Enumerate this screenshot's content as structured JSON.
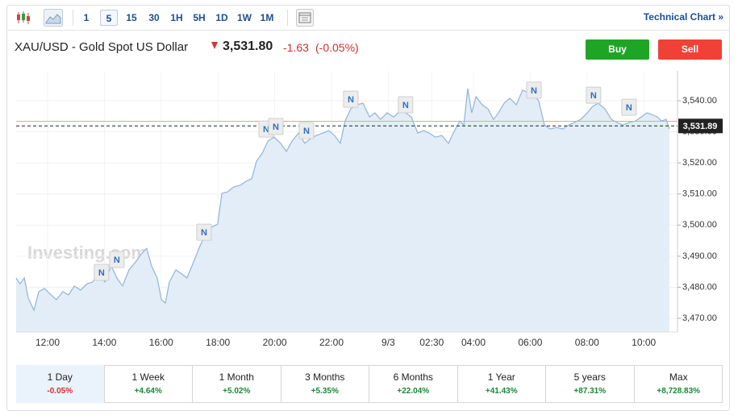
{
  "toolbar": {
    "intervals": [
      "1",
      "5",
      "15",
      "30",
      "1H",
      "5H",
      "1D",
      "1W",
      "1M"
    ],
    "selected": "5",
    "link": "Technical Chart »"
  },
  "header": {
    "title": "XAU/USD - Gold Spot US Dollar",
    "price": "3,531.80",
    "change": "-1.63",
    "change_percent": "(-0.05%)",
    "buy": "Buy",
    "sell": "Sell"
  },
  "chart_data": {
    "type": "line",
    "watermark": "Investing.com",
    "x": [
      -1.11,
      -0.97,
      -0.82,
      -0.68,
      -0.48,
      -0.31,
      -0.11,
      0.09,
      0.31,
      0.54,
      0.74,
      0.94,
      1.16,
      1.39,
      1.59,
      1.79,
      2.02,
      2.24,
      2.44,
      2.64,
      2.87,
      3.1,
      3.3,
      3.49,
      3.66,
      3.86,
      4.01,
      4.15,
      4.29,
      4.52,
      4.72,
      4.91,
      5.14,
      5.37,
      5.57,
      5.77,
      5.99,
      6.14,
      6.34,
      6.56,
      6.79,
      6.99,
      7.19,
      7.36,
      7.56,
      7.76,
      7.98,
      8.21,
      8.41,
      8.61,
      8.84,
      9.06,
      9.26,
      9.46,
      9.69,
      9.91,
      10.11,
      10.31,
      10.48,
      10.68,
      10.88,
      11.11,
      11.34,
      11.53,
      11.73,
      11.96,
      12.19,
      12.41,
      12.61,
      12.81,
      13.04,
      13.24,
      13.44,
      13.66,
      13.89,
      14.12,
      14.29,
      14.52,
      14.66,
      14.8,
      14.94,
      15.09,
      15.31,
      15.51,
      15.71,
      15.88,
      16.08,
      16.28,
      16.51,
      16.73,
      16.93,
      17.13,
      17.3,
      17.5,
      17.7,
      17.93,
      18.15,
      18.35,
      18.55,
      18.78,
      19.01,
      19.2,
      19.4,
      19.63,
      19.86,
      20.06,
      20.26,
      20.48,
      20.71,
      20.91,
      21.11,
      21.28,
      21.48,
      21.62,
      21.79,
      21.9
    ],
    "series": [
      {
        "name": "XAU/USD",
        "color": "#8fb4d8",
        "fill": "#e3edf7",
        "values": [
          3483.0,
          3481.1,
          3483.0,
          3476.5,
          3472.6,
          3478.6,
          3479.6,
          3477.8,
          3476.0,
          3478.6,
          3477.5,
          3480.4,
          3479.1,
          3481.1,
          3481.7,
          3484.3,
          3481.7,
          3486.9,
          3483.0,
          3480.4,
          3485.6,
          3488.1,
          3490.7,
          3492.5,
          3486.9,
          3483.0,
          3476.0,
          3474.9,
          3481.7,
          3485.6,
          3484.3,
          3483.0,
          3488.1,
          3493.3,
          3497.2,
          3499.3,
          3500.3,
          3510.2,
          3510.7,
          3512.3,
          3512.8,
          3514.1,
          3514.9,
          3520.6,
          3523.1,
          3527.0,
          3528.3,
          3526.3,
          3523.7,
          3527.0,
          3529.6,
          3526.3,
          3527.8,
          3528.8,
          3529.6,
          3530.4,
          3528.8,
          3526.3,
          3533.5,
          3537.4,
          3538.7,
          3539.2,
          3534.8,
          3536.1,
          3534.0,
          3536.1,
          3534.8,
          3536.6,
          3536.1,
          3534.8,
          3529.6,
          3530.4,
          3529.6,
          3528.3,
          3528.8,
          3526.3,
          3529.6,
          3533.5,
          3532.2,
          3543.9,
          3536.1,
          3541.3,
          3538.7,
          3537.4,
          3534.0,
          3536.1,
          3539.2,
          3540.8,
          3538.7,
          3543.4,
          3542.6,
          3541.8,
          3540.0,
          3532.2,
          3530.9,
          3531.4,
          3530.9,
          3532.2,
          3533.0,
          3534.0,
          3536.1,
          3538.2,
          3539.2,
          3537.4,
          3534.0,
          3533.0,
          3532.2,
          3533.0,
          3533.5,
          3534.8,
          3536.1,
          3535.6,
          3534.8,
          3533.5,
          3534.0,
          3530.9
        ]
      }
    ],
    "xlim": [
      -1.108,
      22.188
    ],
    "xticks": [
      {
        "value": 0,
        "label": "12:00"
      },
      {
        "value": 2,
        "label": "14:00"
      },
      {
        "value": 4,
        "label": "16:00"
      },
      {
        "value": 6,
        "label": "18:00"
      },
      {
        "value": 8,
        "label": "20:00"
      },
      {
        "value": 10,
        "label": "22:00"
      },
      {
        "value": 12,
        "label": "9/3"
      },
      {
        "value": 13.53,
        "label": "02:30"
      },
      {
        "value": 15,
        "label": "04:00"
      },
      {
        "value": 17,
        "label": "06:00"
      },
      {
        "value": 19,
        "label": "08:00"
      },
      {
        "value": 21,
        "label": "10:00"
      }
    ],
    "ylim": [
      3465.6,
      3549.6
    ],
    "yticks": [
      {
        "value": 3470,
        "label": "3,470.00"
      },
      {
        "value": 3480,
        "label": "3,480.00"
      },
      {
        "value": 3490,
        "label": "3,490.00"
      },
      {
        "value": 3500,
        "label": "3,500.00"
      },
      {
        "value": 3510,
        "label": "3,510.00"
      },
      {
        "value": 3520,
        "label": "3,520.00"
      },
      {
        "value": 3530,
        "label": "3,530.00"
      },
      {
        "value": 3540,
        "label": "3,540.00"
      }
    ],
    "grid": true,
    "last_price": {
      "value": 3531.89,
      "label": "3,531.89"
    },
    "reference_line": {
      "value": 3533.4,
      "color": "#f0a0a0"
    },
    "news_markers": [
      {
        "x": 2.44,
        "y": 3488.9,
        "label": "N"
      },
      {
        "x": 1.9,
        "y": 3484.8,
        "label": "N"
      },
      {
        "x": 5.51,
        "y": 3497.7,
        "label": "N"
      },
      {
        "x": 7.7,
        "y": 3530.9,
        "label": "N"
      },
      {
        "x": 8.04,
        "y": 3531.7,
        "label": "N"
      },
      {
        "x": 9.12,
        "y": 3530.4,
        "label": "N"
      },
      {
        "x": 10.68,
        "y": 3540.5,
        "label": "N"
      },
      {
        "x": 12.61,
        "y": 3538.7,
        "label": "N"
      },
      {
        "x": 17.13,
        "y": 3543.4,
        "label": "N"
      },
      {
        "x": 19.23,
        "y": 3541.8,
        "label": "N"
      },
      {
        "x": 20.48,
        "y": 3537.9,
        "label": "N"
      }
    ]
  },
  "performance": [
    {
      "period": "1 Day",
      "change": "-0.05%"
    },
    {
      "period": "1 Week",
      "change": "+4.64%"
    },
    {
      "period": "1 Month",
      "change": "+5.02%"
    },
    {
      "period": "3 Months",
      "change": "+5.35%"
    },
    {
      "period": "6 Months",
      "change": "+22.04%"
    },
    {
      "period": "1 Year",
      "change": "+41.43%"
    },
    {
      "period": "5 years",
      "change": "+87.31%"
    },
    {
      "period": "Max",
      "change": "+8,728.83%"
    }
  ]
}
